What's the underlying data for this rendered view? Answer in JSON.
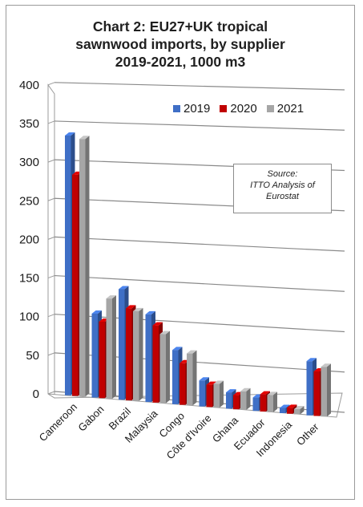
{
  "chart_data": {
    "type": "bar",
    "title": "Chart 2: EU27+UK tropical sawnwood imports, by supplier 2019-2021, 1000 m3",
    "title_lines": [
      "Chart 2: EU27+UK tropical",
      "sawnwood imports, by supplier",
      "2019-2021, 1000 m3"
    ],
    "categories": [
      "Cameroon",
      "Gabon",
      "Brazil",
      "Malaysia",
      "Congo",
      "Côte d'Ivoire",
      "Ghana",
      "Ecuador",
      "Indonesia",
      "Other"
    ],
    "series": [
      {
        "name": "2019",
        "color": "#3f6fc6",
        "values": [
          350,
          113,
          149,
          118,
          73,
          35,
          22,
          18,
          7,
          73
        ]
      },
      {
        "name": "2020",
        "color": "#c00000",
        "values": [
          298,
          103,
          124,
          104,
          56,
          30,
          19,
          23,
          8,
          60
        ]
      },
      {
        "name": "2021",
        "color": "#a6a6a6",
        "values": [
          347,
          135,
          121,
          93,
          70,
          32,
          25,
          23,
          7,
          67
        ]
      }
    ],
    "yticks": [
      "0",
      "50",
      "100",
      "150",
      "200",
      "250",
      "300",
      "350",
      "400"
    ],
    "ylim": [
      0,
      400
    ],
    "xlabel": "",
    "ylabel": "",
    "grid": true,
    "legend": "top-right",
    "annotation": [
      "Source:",
      "ITTO Analysis of",
      "Eurostat"
    ]
  }
}
